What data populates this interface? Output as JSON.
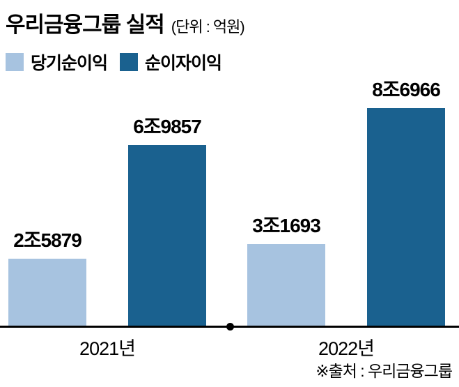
{
  "header": {
    "title": "우리금융그룹 실적",
    "unit": "(단위 : 억원)"
  },
  "legend": [
    {
      "label": "당기순이익",
      "color": "#a7c3e0"
    },
    {
      "label": "순이자이익",
      "color": "#1a618f"
    }
  ],
  "chart_data": {
    "type": "bar",
    "title": "우리금융그룹 실적",
    "unit_label": "(단위 : 억원)",
    "value_unit": "억원",
    "categories": [
      "2021년",
      "2022년"
    ],
    "series": [
      {
        "name": "당기순이익",
        "color": "#a7c3e0",
        "values": [
          25879,
          31693
        ],
        "labels": [
          "2조5879",
          "3조1693"
        ]
      },
      {
        "name": "순이자이익",
        "color": "#1a618f",
        "values": [
          69857,
          86966
        ],
        "labels": [
          "6조9857",
          "8조6966"
        ]
      }
    ],
    "ylim": [
      0,
      86966
    ],
    "grid": false,
    "legend_position": "top-left"
  },
  "footer": {
    "source": "※출처 : 우리금융그룹"
  }
}
